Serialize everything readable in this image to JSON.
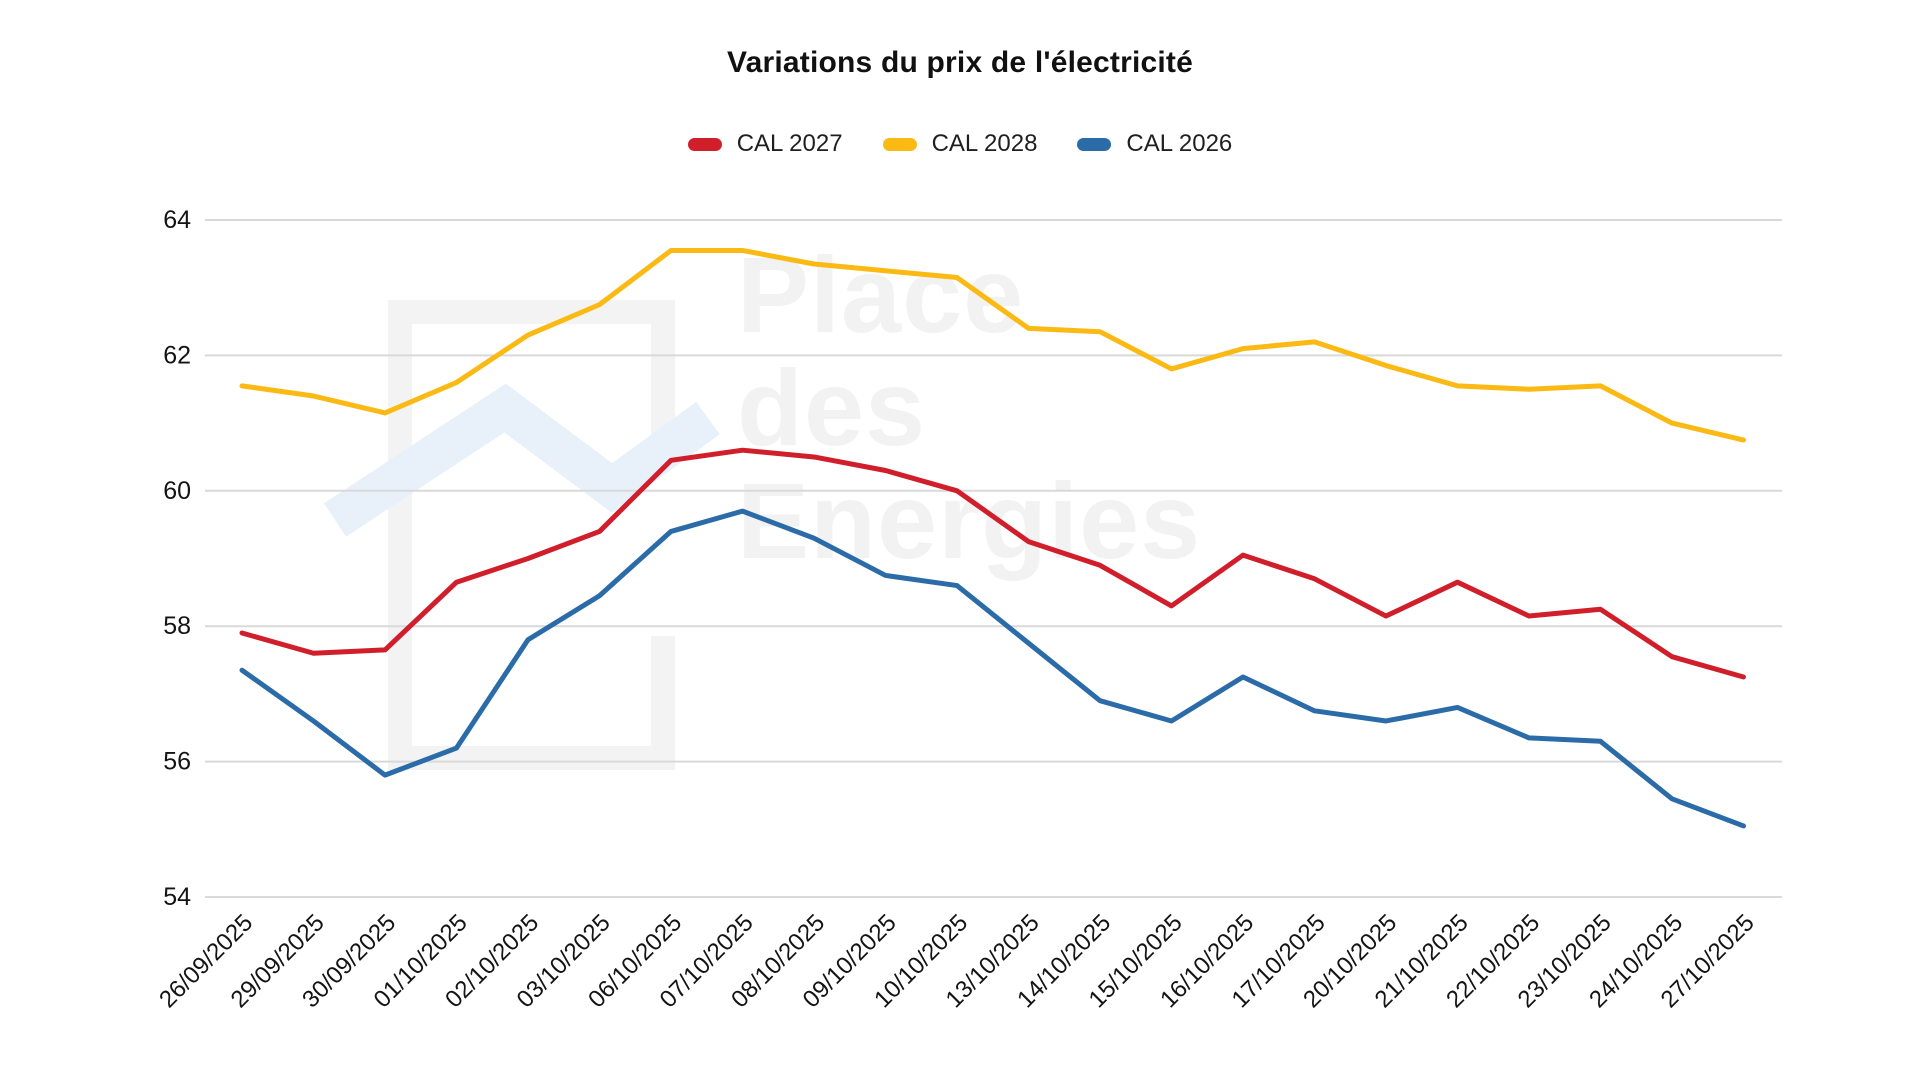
{
  "title": "Variations du prix de l'électricité",
  "watermark": {
    "line1": "Place",
    "line2": "des",
    "line3": "Energies"
  },
  "legend": [
    {
      "label": "CAL 2027",
      "color": "#d01f2b"
    },
    {
      "label": "CAL 2028",
      "color": "#fbb914"
    },
    {
      "label": "CAL 2026",
      "color": "#2b6ca8"
    }
  ],
  "chart_data": {
    "type": "line",
    "title": "Variations du prix de l'électricité",
    "x": [
      "26/09/2025",
      "29/09/2025",
      "30/09/2025",
      "01/10/2025",
      "02/10/2025",
      "03/10/2025",
      "06/10/2025",
      "07/10/2025",
      "08/10/2025",
      "09/10/2025",
      "10/10/2025",
      "13/10/2025",
      "14/10/2025",
      "15/10/2025",
      "16/10/2025",
      "17/10/2025",
      "20/10/2025",
      "21/10/2025",
      "22/10/2025",
      "23/10/2025",
      "24/10/2025",
      "27/10/2025"
    ],
    "series": [
      {
        "name": "CAL 2027",
        "color": "#d01f2b",
        "values": [
          57.9,
          57.6,
          57.65,
          58.65,
          59.0,
          59.4,
          60.45,
          60.6,
          60.5,
          60.3,
          60.0,
          59.25,
          58.9,
          58.3,
          59.05,
          58.7,
          58.15,
          58.65,
          58.15,
          58.25,
          57.55,
          57.25
        ]
      },
      {
        "name": "CAL 2028",
        "color": "#fbb914",
        "values": [
          61.55,
          61.4,
          61.15,
          61.6,
          62.3,
          62.75,
          63.55,
          63.55,
          63.35,
          63.25,
          63.15,
          62.4,
          62.35,
          61.8,
          62.1,
          62.2,
          61.85,
          61.55,
          61.5,
          61.55,
          61.0,
          60.75
        ]
      },
      {
        "name": "CAL 2026",
        "color": "#2b6ca8",
        "values": [
          57.35,
          56.6,
          55.8,
          56.2,
          57.8,
          58.45,
          59.4,
          59.7,
          59.3,
          58.75,
          58.6,
          57.75,
          56.9,
          56.6,
          57.25,
          56.75,
          56.6,
          56.8,
          56.35,
          56.3,
          55.45,
          55.05
        ]
      }
    ],
    "xlabel": "",
    "ylabel": "",
    "ylim": [
      54,
      64
    ],
    "yticks": [
      54,
      56,
      58,
      60,
      62,
      64
    ],
    "grid": true,
    "legend_position": "top"
  }
}
